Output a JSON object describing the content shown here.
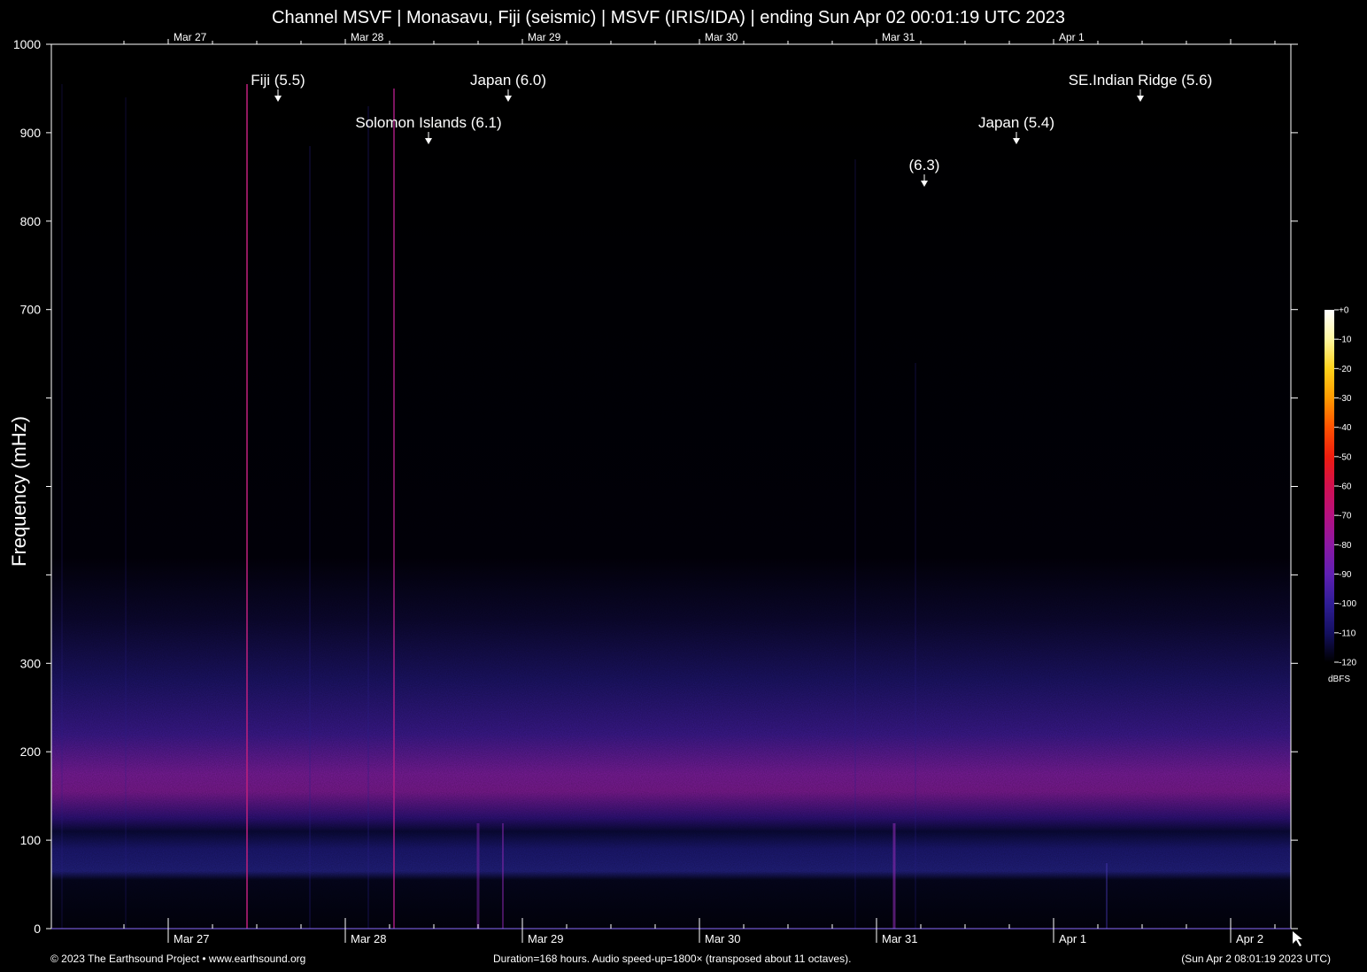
{
  "chart_data": {
    "type": "heatmap",
    "title": "Channel MSVF | Monasavu, Fiji (seismic) | MSVF (IRIS/IDA) | ending Sun Apr 02 00:01:19 UTC 2023",
    "ylabel": "Frequency (mHz)",
    "xlabel": "",
    "ylim": [
      0,
      1000
    ],
    "y_ticks": [
      0,
      100,
      200,
      300,
      400,
      500,
      600,
      700,
      800,
      900,
      1000
    ],
    "y_tick_labels": [
      "0",
      "100",
      "200",
      "300",
      "",
      "",
      "",
      "700",
      "800",
      "900",
      "1000"
    ],
    "x_tick_labels_top": [
      "Mar 27",
      "Mar 28",
      "Mar 29",
      "Mar 30",
      "Mar 31",
      "Apr  1"
    ],
    "x_tick_labels_bottom": [
      "Mar 27",
      "Mar 28",
      "Mar 29",
      "Mar 30",
      "Mar 31",
      "Apr  1",
      "Apr  2"
    ],
    "duration_hours": 168,
    "annotations": [
      {
        "label": "Fiji (5.5)",
        "day": 0.62
      },
      {
        "label": "Solomon Islands (6.1)",
        "day": 1.47
      },
      {
        "label": "Japan (6.0)",
        "day": 1.92
      },
      {
        "label": "(6.3)",
        "day": 4.27
      },
      {
        "label": "Japan (5.4)",
        "day": 4.79
      },
      {
        "label": "SE.Indian Ridge (5.6)",
        "day": 5.49
      }
    ],
    "colorbar": {
      "unit": "dBFS",
      "range": [
        -120,
        0
      ],
      "tick_labels": [
        "+0",
        "-10",
        "-20",
        "-30",
        "-40",
        "-50",
        "-60",
        "-70",
        "-80",
        "-90",
        "-100",
        "-110",
        "-120"
      ],
      "colors": [
        "#ffffff",
        "#fff7a0",
        "#ffd21a",
        "#ff9a00",
        "#ff5200",
        "#ee1c0e",
        "#d1104f",
        "#b5107f",
        "#8c18a3",
        "#5f1fb2",
        "#2f1d96",
        "#141060",
        "#000000"
      ]
    }
  },
  "footer": {
    "left": "© 2023 The Earthsound Project • www.earthsound.org",
    "center": "Duration=168 hours. Audio speed-up=1800× (transposed about 11 octaves).",
    "right": "(Sun Apr  2 08:01:19 2023 UTC)"
  }
}
